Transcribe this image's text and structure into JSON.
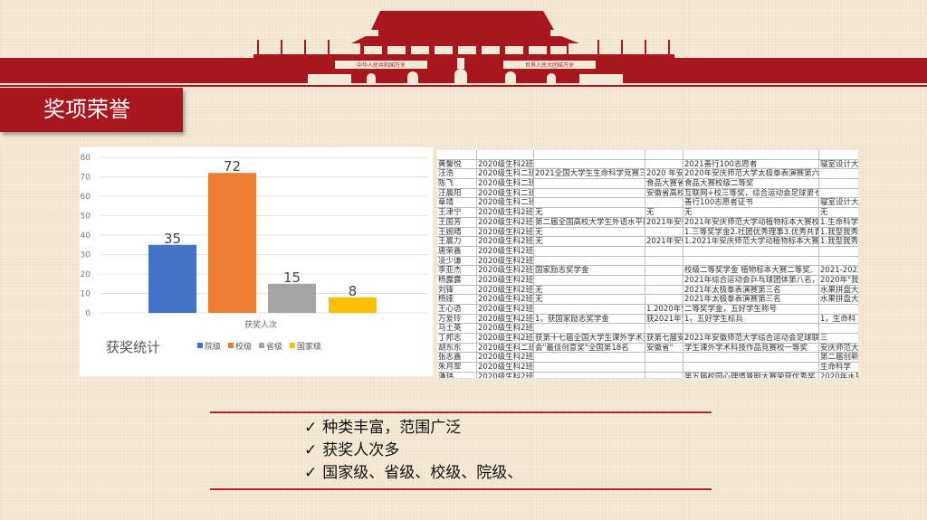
{
  "header": {
    "title": "奖项荣誉",
    "banner_left": "中华人民共和国万岁",
    "banner_right": "世界人民大团结万岁",
    "colors": {
      "red": "#a8171d"
    }
  },
  "chart_data": {
    "type": "bar",
    "categories": [
      "获奖人次"
    ],
    "xlabel": "获奖人次",
    "title": "获奖统计",
    "ylim": [
      0,
      80
    ],
    "yticks": [
      0,
      10,
      20,
      30,
      40,
      50,
      60,
      70,
      80
    ],
    "grid": true,
    "legend": "bottom",
    "series": [
      {
        "name": "院级",
        "values": [
          35
        ],
        "color": "#4472c4"
      },
      {
        "name": "校级",
        "values": [
          72
        ],
        "color": "#ed7d31"
      },
      {
        "name": "省级",
        "values": [
          15
        ],
        "color": "#a5a5a5"
      },
      {
        "name": "国家级",
        "values": [
          8
        ],
        "color": "#ffc000"
      }
    ]
  },
  "table": {
    "rows": [
      [
        "黄馨悦",
        "2020级生科2班",
        "",
        "",
        "2021善行100志愿者",
        "寝室设计大"
      ],
      [
        "汪浩",
        "2020级生科二班",
        "2021全国大学生生命科学竞赛三等",
        "2020 年安",
        "2020年安庆师范大学太极拳表演赛第六名，2021年",
        ""
      ],
      [
        "陈飞",
        "2020级生科二班",
        "",
        "食品大赛省",
        "食品大赛校级二等奖",
        ""
      ],
      [
        "汪晨阳",
        "2020级生科二班",
        "",
        "安徽省高校",
        "互联网+校三等奖，综合运动会足球第七名，三等",
        ""
      ],
      [
        "章靖",
        "2020级生科二班",
        "",
        "",
        "善行100志愿者证书",
        "寝室设计大"
      ],
      [
        "王津宁",
        "2020级生科2班",
        "无",
        "无",
        "无",
        "无"
      ],
      [
        "王国芳",
        "2020级生科2班",
        "第二届全国高校大学生外语水平能",
        "2021年安徽",
        "2021年安庆师范大学动植物标本大赛校级",
        "1.生命科学"
      ],
      [
        "王婉晴",
        "2020级生科2班",
        "无",
        "",
        "1.三等奖学金2.社团优秀理事3.优秀共青团",
        "1.我型我秀"
      ],
      [
        "王晨力",
        "2020级生科2班",
        "无",
        "2021年安徽",
        "1.2021年安庆师范大学动植物标本大赛校",
        "1.我型我秀"
      ],
      [
        "唐荣鑫",
        "2020级生科2班",
        "",
        "",
        "",
        ""
      ],
      [
        "凌少谦",
        "2020级生科2班",
        "",
        "",
        "",
        ""
      ],
      [
        "李亚杰",
        "2020级生科2班",
        "国家励志奖学金",
        "",
        "校级二等奖学金 植物标本大赛二等奖,",
        "2021-2022"
      ],
      [
        "杨露露",
        "2020级生科2班",
        "",
        "",
        "2021年综合运动会乒乓球团体第八名，大",
        "2020年\"我"
      ],
      [
        "刘锋",
        "2020级生科2班",
        "无",
        "",
        "2021年太极拳表演赛第三名",
        "水果拼盘大"
      ],
      [
        "杨娅",
        "2020级生科2班",
        "无",
        "",
        "2021年太极拳表演赛第三名",
        "水果拼盘大"
      ],
      [
        "王心语",
        "2020级生科2班",
        "",
        "1.2020年安",
        "二等奖学金，五好学生称号",
        ""
      ],
      [
        "万爱玲",
        "2020级生科2班",
        "1，获国家励志奖学金",
        "获2021年安",
        "1，五好学生标兵",
        "1，生命科"
      ],
      [
        "马士英",
        "2020级生科2班",
        "",
        "",
        "",
        ""
      ],
      [
        "丁邦志",
        "2020级生科2班",
        "获第十七届全国大学生课外学术竞",
        "获第七届安",
        "2021年安徽师范大学综合运动会足球联赛第七名",
        "三"
      ],
      [
        "胡东东",
        "2020级生科二班",
        "会\"最佳创意奖\"全国第18名",
        "安徽省\"",
        "学生课外学术科技作品竞赛校一等奖",
        "安庆师范大"
      ],
      [
        "张志鑫",
        "2020级生科2班",
        "",
        "",
        "",
        "第二届创新"
      ],
      [
        "朱月翠",
        "2020级生科2班",
        "",
        "",
        "",
        "生命科学"
      ],
      [
        "潘玮",
        "2020级生科2班",
        "",
        "",
        "第五届校园心理情景剧大赛荣获优秀奖,",
        "2020年水果"
      ]
    ]
  },
  "bullets": {
    "icon": "check-icon",
    "mark": "✓",
    "items": [
      "种类丰富，范围广泛",
      "获奖人次多",
      "国家级、省级、校级、院级、"
    ]
  }
}
